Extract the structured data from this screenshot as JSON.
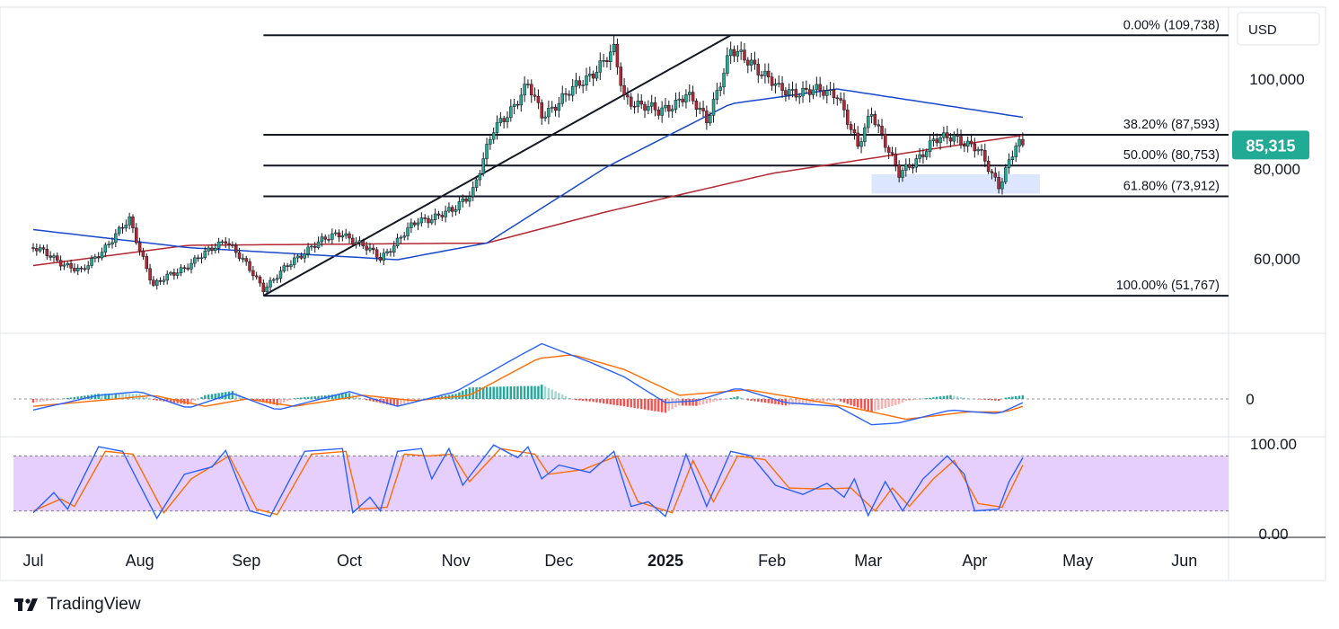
{
  "currency": "USD",
  "brand": "TradingView",
  "chart_data": [
    {
      "type": "candlestick",
      "pane": "price",
      "ylim": [
        43000,
        117000
      ],
      "y_ticks": [
        60000,
        80000,
        100000
      ],
      "y_tick_labels": [
        "60,000",
        "80,000",
        "100,000"
      ],
      "last_price": 85315,
      "last_price_label": "85,315",
      "last_price_color": "#22ab94",
      "up_color": "#22ab94",
      "down_color": "#b22833",
      "fib_levels": [
        {
          "label": "0.00% (109,738)",
          "value": 109738
        },
        {
          "label": "38.20% (87,593)",
          "value": 87593
        },
        {
          "label": "50.00% (80,753)",
          "value": 80753
        },
        {
          "label": "61.80% (73,912)",
          "value": 73912
        },
        {
          "label": "100.00% (51,767)",
          "value": 51767
        }
      ],
      "anchor_points": [
        {
          "date": "2024-07-01",
          "close": 62500
        },
        {
          "date": "2024-07-15",
          "close": 57000
        },
        {
          "date": "2024-07-29",
          "close": 68500
        },
        {
          "date": "2024-08-05",
          "close": 54000
        },
        {
          "date": "2024-08-20",
          "close": 61000
        },
        {
          "date": "2024-08-26",
          "close": 64500
        },
        {
          "date": "2024-09-06",
          "close": 53500
        },
        {
          "date": "2024-09-20",
          "close": 63000
        },
        {
          "date": "2024-09-29",
          "close": 65800
        },
        {
          "date": "2024-10-10",
          "close": 60200
        },
        {
          "date": "2024-10-21",
          "close": 68500
        },
        {
          "date": "2024-10-31",
          "close": 70500
        },
        {
          "date": "2024-11-06",
          "close": 75500
        },
        {
          "date": "2024-11-12",
          "close": 88500
        },
        {
          "date": "2024-11-22",
          "close": 98500
        },
        {
          "date": "2024-11-26",
          "close": 92000
        },
        {
          "date": "2024-12-05",
          "close": 97500
        },
        {
          "date": "2024-12-17",
          "close": 106000
        },
        {
          "date": "2024-12-20",
          "close": 96000
        },
        {
          "date": "2024-12-30",
          "close": 92500
        },
        {
          "date": "2025-01-07",
          "close": 96500
        },
        {
          "date": "2025-01-13",
          "close": 91000
        },
        {
          "date": "2025-01-20",
          "close": 106000
        },
        {
          "date": "2025-01-26",
          "close": 104000
        },
        {
          "date": "2025-02-03",
          "close": 97500
        },
        {
          "date": "2025-02-20",
          "close": 97000
        },
        {
          "date": "2025-02-26",
          "close": 84500
        },
        {
          "date": "2025-03-02",
          "close": 93000
        },
        {
          "date": "2025-03-10",
          "close": 78500
        },
        {
          "date": "2025-03-20",
          "close": 86000
        },
        {
          "date": "2025-03-26",
          "close": 87500
        },
        {
          "date": "2025-04-02",
          "close": 84000
        },
        {
          "date": "2025-04-08",
          "close": 76500
        },
        {
          "date": "2025-04-13",
          "close": 85000
        },
        {
          "date": "2025-04-15",
          "close": 85315
        }
      ],
      "ma_fast_color": "#1848cc",
      "ma_slow_color": "#b22833",
      "ma_fast": [
        {
          "date": "2024-07-01",
          "value": 66500
        },
        {
          "date": "2024-08-15",
          "value": 62500
        },
        {
          "date": "2024-10-15",
          "value": 59800
        },
        {
          "date": "2024-11-10",
          "value": 63500
        },
        {
          "date": "2024-12-15",
          "value": 80500
        },
        {
          "date": "2025-01-20",
          "value": 94500
        },
        {
          "date": "2025-02-20",
          "value": 97800
        },
        {
          "date": "2025-04-15",
          "value": 91500
        }
      ],
      "ma_slow": [
        {
          "date": "2024-07-01",
          "value": 58500
        },
        {
          "date": "2024-08-15",
          "value": 63000
        },
        {
          "date": "2024-11-10",
          "value": 63500
        },
        {
          "date": "2024-12-15",
          "value": 70500
        },
        {
          "date": "2025-02-01",
          "value": 79000
        },
        {
          "date": "2025-04-15",
          "value": 87500
        }
      ],
      "trendline": [
        {
          "date": "2024-09-06",
          "value": 51767
        },
        {
          "date": "2025-01-20",
          "value": 109738
        }
      ],
      "support_zone": {
        "from": "2025-03-02",
        "to": "2025-04-20",
        "top": 78800,
        "bottom": 74500,
        "color": "#dce6ff"
      }
    },
    {
      "type": "line",
      "pane": "oscillator",
      "zero_label": "0",
      "series_colors": [
        "#2962ff",
        "#ff6d00"
      ],
      "histogram_colors": {
        "positive": "#26a69a",
        "negative": "#ef5350"
      },
      "macd": [
        {
          "date": "2024-07-01",
          "value": -6
        },
        {
          "date": "2024-07-20",
          "value": 2
        },
        {
          "date": "2024-08-01",
          "value": 4
        },
        {
          "date": "2024-08-15",
          "value": -5
        },
        {
          "date": "2024-08-28",
          "value": 3
        },
        {
          "date": "2024-09-10",
          "value": -6
        },
        {
          "date": "2024-10-01",
          "value": 4
        },
        {
          "date": "2024-10-15",
          "value": -4
        },
        {
          "date": "2024-11-01",
          "value": 4
        },
        {
          "date": "2024-11-20",
          "value": 24
        },
        {
          "date": "2024-11-26",
          "value": 30
        },
        {
          "date": "2024-12-10",
          "value": 20
        },
        {
          "date": "2024-12-20",
          "value": 12
        },
        {
          "date": "2025-01-01",
          "value": -2
        },
        {
          "date": "2025-01-10",
          "value": -1
        },
        {
          "date": "2025-01-22",
          "value": 6
        },
        {
          "date": "2025-02-05",
          "value": -2
        },
        {
          "date": "2025-02-20",
          "value": -4
        },
        {
          "date": "2025-03-02",
          "value": -14
        },
        {
          "date": "2025-03-10",
          "value": -13
        },
        {
          "date": "2025-03-25",
          "value": -6
        },
        {
          "date": "2025-04-08",
          "value": -8
        },
        {
          "date": "2025-04-15",
          "value": -2
        }
      ],
      "signal": [
        {
          "date": "2024-07-01",
          "value": -4
        },
        {
          "date": "2024-07-25",
          "value": 0
        },
        {
          "date": "2024-08-05",
          "value": 2
        },
        {
          "date": "2024-08-20",
          "value": -4
        },
        {
          "date": "2024-09-01",
          "value": 0
        },
        {
          "date": "2024-09-15",
          "value": -4
        },
        {
          "date": "2024-10-05",
          "value": 2
        },
        {
          "date": "2024-10-20",
          "value": -1
        },
        {
          "date": "2024-11-05",
          "value": 2
        },
        {
          "date": "2024-11-25",
          "value": 22
        },
        {
          "date": "2024-12-05",
          "value": 24
        },
        {
          "date": "2024-12-20",
          "value": 16
        },
        {
          "date": "2025-01-05",
          "value": 2
        },
        {
          "date": "2025-01-25",
          "value": 5
        },
        {
          "date": "2025-02-10",
          "value": 0
        },
        {
          "date": "2025-02-25",
          "value": -5
        },
        {
          "date": "2025-03-12",
          "value": -11
        },
        {
          "date": "2025-03-30",
          "value": -7
        },
        {
          "date": "2025-04-10",
          "value": -7
        },
        {
          "date": "2025-04-15",
          "value": -4
        }
      ]
    },
    {
      "type": "line",
      "pane": "stochastic",
      "ylim": [
        0,
        100
      ],
      "band": [
        20,
        80
      ],
      "y_tick_labels": [
        "100.00",
        "0.00"
      ],
      "band_color": "#e6cffd",
      "series_colors": [
        "#2962ff",
        "#ff6d00"
      ],
      "k": [
        {
          "date": "2024-07-01",
          "value": 18
        },
        {
          "date": "2024-07-07",
          "value": 40
        },
        {
          "date": "2024-07-11",
          "value": 22
        },
        {
          "date": "2024-07-20",
          "value": 90
        },
        {
          "date": "2024-07-27",
          "value": 85
        },
        {
          "date": "2024-08-06",
          "value": 12
        },
        {
          "date": "2024-08-14",
          "value": 60
        },
        {
          "date": "2024-08-22",
          "value": 68
        },
        {
          "date": "2024-08-26",
          "value": 86
        },
        {
          "date": "2024-09-02",
          "value": 20
        },
        {
          "date": "2024-09-08",
          "value": 14
        },
        {
          "date": "2024-09-18",
          "value": 85
        },
        {
          "date": "2024-09-29",
          "value": 88
        },
        {
          "date": "2024-10-02",
          "value": 18
        },
        {
          "date": "2024-10-07",
          "value": 35
        },
        {
          "date": "2024-10-10",
          "value": 20
        },
        {
          "date": "2024-10-15",
          "value": 85
        },
        {
          "date": "2024-10-22",
          "value": 88
        },
        {
          "date": "2024-10-25",
          "value": 55
        },
        {
          "date": "2024-10-30",
          "value": 88
        },
        {
          "date": "2024-11-03",
          "value": 48
        },
        {
          "date": "2024-11-12",
          "value": 92
        },
        {
          "date": "2024-11-19",
          "value": 78
        },
        {
          "date": "2024-11-22",
          "value": 90
        },
        {
          "date": "2024-11-26",
          "value": 55
        },
        {
          "date": "2024-12-01",
          "value": 70
        },
        {
          "date": "2024-12-10",
          "value": 62
        },
        {
          "date": "2024-12-17",
          "value": 85
        },
        {
          "date": "2024-12-22",
          "value": 25
        },
        {
          "date": "2024-12-27",
          "value": 30
        },
        {
          "date": "2025-01-01",
          "value": 14
        },
        {
          "date": "2025-01-07",
          "value": 82
        },
        {
          "date": "2025-01-13",
          "value": 25
        },
        {
          "date": "2025-01-20",
          "value": 85
        },
        {
          "date": "2025-01-26",
          "value": 80
        },
        {
          "date": "2025-02-02",
          "value": 48
        },
        {
          "date": "2025-02-10",
          "value": 38
        },
        {
          "date": "2025-02-17",
          "value": 50
        },
        {
          "date": "2025-02-22",
          "value": 35
        },
        {
          "date": "2025-02-25",
          "value": 55
        },
        {
          "date": "2025-03-01",
          "value": 15
        },
        {
          "date": "2025-03-06",
          "value": 52
        },
        {
          "date": "2025-03-11",
          "value": 20
        },
        {
          "date": "2025-03-17",
          "value": 55
        },
        {
          "date": "2025-03-24",
          "value": 80
        },
        {
          "date": "2025-03-29",
          "value": 60
        },
        {
          "date": "2025-04-01",
          "value": 20
        },
        {
          "date": "2025-04-08",
          "value": 22
        },
        {
          "date": "2025-04-11",
          "value": 52
        },
        {
          "date": "2025-04-15",
          "value": 78
        }
      ],
      "d": [
        {
          "date": "2024-07-01",
          "value": 20
        },
        {
          "date": "2024-07-09",
          "value": 33
        },
        {
          "date": "2024-07-13",
          "value": 25
        },
        {
          "date": "2024-07-22",
          "value": 85
        },
        {
          "date": "2024-07-30",
          "value": 82
        },
        {
          "date": "2024-08-08",
          "value": 18
        },
        {
          "date": "2024-08-16",
          "value": 55
        },
        {
          "date": "2024-08-27",
          "value": 80
        },
        {
          "date": "2024-09-04",
          "value": 22
        },
        {
          "date": "2024-09-10",
          "value": 16
        },
        {
          "date": "2024-09-20",
          "value": 82
        },
        {
          "date": "2024-09-30",
          "value": 85
        },
        {
          "date": "2024-10-04",
          "value": 22
        },
        {
          "date": "2024-10-12",
          "value": 24
        },
        {
          "date": "2024-10-17",
          "value": 82
        },
        {
          "date": "2024-10-24",
          "value": 80
        },
        {
          "date": "2024-10-31",
          "value": 82
        },
        {
          "date": "2024-11-05",
          "value": 52
        },
        {
          "date": "2024-11-14",
          "value": 88
        },
        {
          "date": "2024-11-24",
          "value": 82
        },
        {
          "date": "2024-11-28",
          "value": 60
        },
        {
          "date": "2024-12-08",
          "value": 65
        },
        {
          "date": "2024-12-18",
          "value": 80
        },
        {
          "date": "2024-12-24",
          "value": 30
        },
        {
          "date": "2025-01-03",
          "value": 18
        },
        {
          "date": "2025-01-09",
          "value": 75
        },
        {
          "date": "2025-01-15",
          "value": 30
        },
        {
          "date": "2025-01-22",
          "value": 80
        },
        {
          "date": "2025-01-30",
          "value": 76
        },
        {
          "date": "2025-02-06",
          "value": 45
        },
        {
          "date": "2025-02-15",
          "value": 44
        },
        {
          "date": "2025-02-24",
          "value": 45
        },
        {
          "date": "2025-03-03",
          "value": 20
        },
        {
          "date": "2025-03-08",
          "value": 45
        },
        {
          "date": "2025-03-13",
          "value": 25
        },
        {
          "date": "2025-03-20",
          "value": 55
        },
        {
          "date": "2025-03-26",
          "value": 75
        },
        {
          "date": "2025-04-02",
          "value": 28
        },
        {
          "date": "2025-04-09",
          "value": 24
        },
        {
          "date": "2025-04-15",
          "value": 70
        }
      ]
    }
  ],
  "x_axis": [
    {
      "label": "Jul",
      "date": "2024-07-01"
    },
    {
      "label": "Aug",
      "date": "2024-08-01"
    },
    {
      "label": "Sep",
      "date": "2024-09-01"
    },
    {
      "label": "Oct",
      "date": "2024-10-01"
    },
    {
      "label": "Nov",
      "date": "2024-11-01"
    },
    {
      "label": "Dec",
      "date": "2024-12-01"
    },
    {
      "label": "2025",
      "date": "2025-01-01",
      "bold": true
    },
    {
      "label": "Feb",
      "date": "2025-02-01"
    },
    {
      "label": "Mar",
      "date": "2025-03-01"
    },
    {
      "label": "Apr",
      "date": "2025-04-01"
    },
    {
      "label": "May",
      "date": "2025-05-01"
    },
    {
      "label": "Jun",
      "date": "2025-06-01"
    }
  ]
}
